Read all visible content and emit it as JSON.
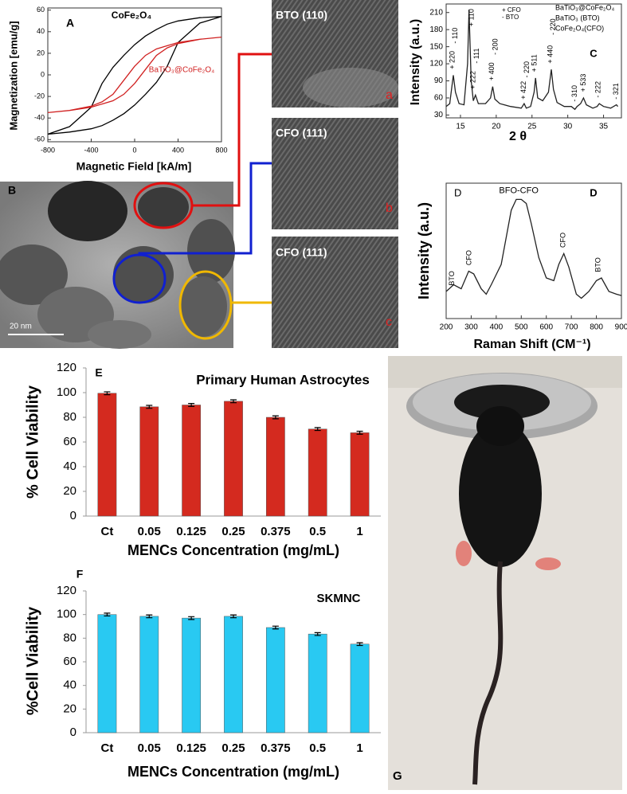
{
  "chart_data": [
    {
      "type": "line",
      "panel": "A",
      "xlabel": "Magnetic Field [kA/m]",
      "ylabel": "Magnetization [emu/g]",
      "xlim": [
        -800,
        800
      ],
      "xticks": [
        -800,
        -400,
        0,
        400,
        800
      ],
      "ylim": [
        -62,
        62
      ],
      "yticks": [
        -60,
        -40,
        -20,
        0,
        20,
        40,
        60
      ],
      "series": [
        {
          "name": "CoFe₂O₄",
          "color": "#000000",
          "x": [
            -800,
            -600,
            -400,
            -300,
            -200,
            -100,
            0,
            100,
            200,
            300,
            400,
            600,
            800,
            800,
            600,
            400,
            300,
            200,
            100,
            0,
            -100,
            -200,
            -300,
            -400,
            -600,
            -800
          ],
          "values": [
            -55,
            -53,
            -50,
            -47,
            -42,
            -36,
            -28,
            -18,
            -7,
            8,
            30,
            48,
            54,
            54,
            53,
            50,
            47,
            42,
            36,
            28,
            18,
            7,
            -8,
            -30,
            -48,
            -55
          ]
        },
        {
          "name": "BaTiO₃@CoFe₂O₄",
          "color": "#d02020",
          "x": [
            -800,
            -600,
            -400,
            -300,
            -200,
            -100,
            0,
            100,
            200,
            300,
            400,
            600,
            800,
            800,
            600,
            400,
            300,
            200,
            100,
            0,
            -100,
            -200,
            -300,
            -400,
            -600,
            -800
          ],
          "values": [
            -35,
            -33,
            -30,
            -27,
            -24,
            -18,
            -8,
            5,
            18,
            25,
            29,
            33,
            35,
            35,
            33,
            30,
            27,
            24,
            18,
            8,
            -5,
            -18,
            -25,
            -29,
            -33,
            -35
          ]
        }
      ]
    },
    {
      "type": "line",
      "panel": "C",
      "xlabel": "2 θ",
      "ylabel": "Intensity (a.u.)",
      "color": "#222222",
      "xlim": [
        13,
        37.5
      ],
      "xticks": [
        15,
        20,
        25,
        30,
        35
      ],
      "ylim": [
        25,
        225
      ],
      "yticks": [
        30,
        60,
        90,
        120,
        150,
        180,
        210
      ],
      "x": [
        13,
        13.5,
        13.8,
        14,
        14.3,
        14.8,
        15.5,
        16,
        16.2,
        16.5,
        16.8,
        17.1,
        17.5,
        18.5,
        19.2,
        19.5,
        19.8,
        20.5,
        22,
        23.5,
        23.9,
        24.2,
        24.8,
        25.3,
        25.5,
        25.8,
        26.5,
        27.3,
        27.7,
        28,
        28.5,
        29.5,
        30.5,
        31,
        31.3,
        31.8,
        32.2,
        32.6,
        33.5,
        34.1,
        34.4,
        35,
        36,
        36.8,
        37
      ],
      "values": [
        45,
        50,
        80,
        100,
        70,
        50,
        48,
        120,
        215,
        90,
        55,
        65,
        50,
        50,
        60,
        80,
        58,
        50,
        45,
        42,
        50,
        42,
        45,
        70,
        95,
        60,
        55,
        70,
        110,
        75,
        52,
        45,
        45,
        40,
        45,
        50,
        60,
        48,
        42,
        45,
        50,
        45,
        42,
        48,
        45
      ],
      "notes": [
        "+ CFO",
        "- BTO"
      ],
      "phase_labels": [
        "BaTiO₃@CoFe₂O₄",
        "BaTiO₃ (BTO)",
        "CoFe₂O₄(CFO)"
      ],
      "annotations": [
        {
          "label": "+ 220",
          "x": 13.9,
          "y": 105
        },
        {
          "label": "- 110",
          "x": 14.3,
          "y": 150
        },
        {
          "label": "+ 110",
          "x": 16.6,
          "y": 180
        },
        {
          "label": "- 111",
          "x": 17.3,
          "y": 115
        },
        {
          "label": "+ 222",
          "x": 16.8,
          "y": 70
        },
        {
          "label": "+ 400",
          "x": 19.4,
          "y": 85
        },
        {
          "label": "- 200",
          "x": 19.9,
          "y": 130
        },
        {
          "label": "+ 422",
          "x": 23.9,
          "y": 52
        },
        {
          "label": "- 220",
          "x": 24.3,
          "y": 90
        },
        {
          "label": "+ 511",
          "x": 25.4,
          "y": 100
        },
        {
          "label": "+ 440",
          "x": 27.6,
          "y": 115
        },
        {
          "label": "- 220",
          "x": 28,
          "y": 165
        },
        {
          "label": "- 310",
          "x": 31,
          "y": 48
        },
        {
          "label": "+ 533",
          "x": 32.2,
          "y": 65
        },
        {
          "label": "- 222",
          "x": 34.3,
          "y": 55
        },
        {
          "label": "- 321",
          "x": 36.8,
          "y": 52
        }
      ]
    },
    {
      "type": "line",
      "panel_labels": [
        "D",
        "D"
      ],
      "xlabel": "Raman Shift (CM⁻¹)",
      "ylabel": "Intensity (a.u.)",
      "color": "#222222",
      "xlim": [
        200,
        900
      ],
      "xticks": [
        200,
        300,
        400,
        500,
        600,
        700,
        800,
        900
      ],
      "ylim": [
        0,
        100
      ],
      "x": [
        200,
        230,
        260,
        290,
        310,
        340,
        360,
        380,
        420,
        460,
        480,
        500,
        520,
        540,
        570,
        600,
        630,
        650,
        670,
        690,
        720,
        740,
        770,
        800,
        820,
        850,
        880,
        900
      ],
      "values": [
        20,
        25,
        22,
        35,
        33,
        22,
        18,
        25,
        40,
        80,
        88,
        88,
        85,
        70,
        45,
        30,
        28,
        40,
        48,
        38,
        18,
        15,
        20,
        28,
        30,
        20,
        18,
        17
      ],
      "annotations": [
        {
          "label": "BTO",
          "x": 225,
          "y": 22
        },
        {
          "label": "CFO",
          "x": 293,
          "y": 37
        },
        {
          "label": "BFO-CFO",
          "x": 490,
          "y": 92
        },
        {
          "label": "CFO",
          "x": 668,
          "y": 50
        },
        {
          "label": "BTO",
          "x": 808,
          "y": 32
        }
      ]
    },
    {
      "type": "bar",
      "panel": "E",
      "title": "Primary Human Astrocytes",
      "ylabel": "% Cell Viability",
      "xlabel": "MENCs Concentration (mg/mL)",
      "categories": [
        "Ct",
        "0.05",
        "0.125",
        "0.25",
        "0.375",
        "0.5",
        "1"
      ],
      "values": [
        99.5,
        88.5,
        90,
        93,
        80,
        70.5,
        67.5
      ],
      "errors": [
        1.2,
        1.2,
        1.2,
        1.2,
        1.2,
        1.2,
        1.2
      ],
      "color": "#d42a1f",
      "ylim": [
        0,
        120
      ],
      "yticks": [
        0,
        20,
        40,
        60,
        80,
        100,
        120
      ]
    },
    {
      "type": "bar",
      "panel": "F",
      "title": "SKMNC",
      "ylabel": "%Cell Viability",
      "xlabel": "MENCs Concentration (mg/mL)",
      "categories": [
        "Ct",
        "0.05",
        "0.125",
        "0.25",
        "0.375",
        "0.5",
        "1"
      ],
      "values": [
        100,
        98.5,
        97,
        98.5,
        89,
        83.5,
        75
      ],
      "errors": [
        1.2,
        1.2,
        1.2,
        1.2,
        1.2,
        1.2,
        1.2
      ],
      "color": "#29c9f2",
      "ylim": [
        0,
        120
      ],
      "yticks": [
        0,
        20,
        40,
        60,
        80,
        100,
        120
      ]
    }
  ],
  "images": {
    "tem": {
      "panel": "B",
      "scale_bar": "20 nm"
    },
    "hrtem": [
      {
        "title": "BTO (110)",
        "label": "a"
      },
      {
        "title": "CFO (111)",
        "label": "b"
      },
      {
        "title": "CFO (111)",
        "label": "c"
      }
    ],
    "photo": {
      "panel": "G"
    }
  }
}
